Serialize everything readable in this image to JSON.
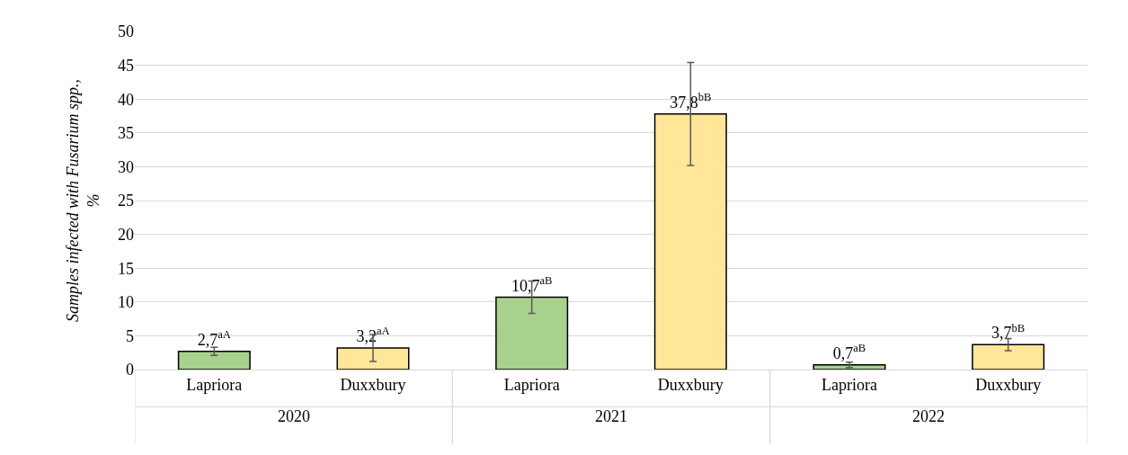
{
  "chart_data": {
    "type": "bar",
    "ylabel": "Samples infected with Fusarium spp., %",
    "categories": [
      "Lapriora",
      "Duxxbury",
      "Lapriora",
      "Duxxbury",
      "Lapriora",
      "Duxxbury"
    ],
    "values": [
      2.7,
      3.2,
      10.7,
      37.8,
      0.7,
      3.7
    ],
    "colors": [
      "#a9d18e",
      "#ffe699",
      "#a9d18e",
      "#ffe699",
      "#a9d18e",
      "#ffe699"
    ],
    "errors": [
      0.6,
      2.0,
      2.4,
      7.6,
      0.4,
      0.9
    ],
    "value_labels": [
      "2,7$^{aA}$",
      "3,2$^{aA}$",
      "10,7$^{aB}$",
      "37,8$^{bB}$",
      "0,7$^{aB}$",
      "3,7$^{bB}$"
    ],
    "annotations": [
      "2020",
      "2021",
      "2022"
    ],
    "ylim": [
      0,
      50
    ],
    "yticks": [
      0,
      5,
      10,
      15,
      20,
      25,
      30,
      35,
      40,
      45,
      50
    ],
    "grid": "y",
    "legend": false
  }
}
